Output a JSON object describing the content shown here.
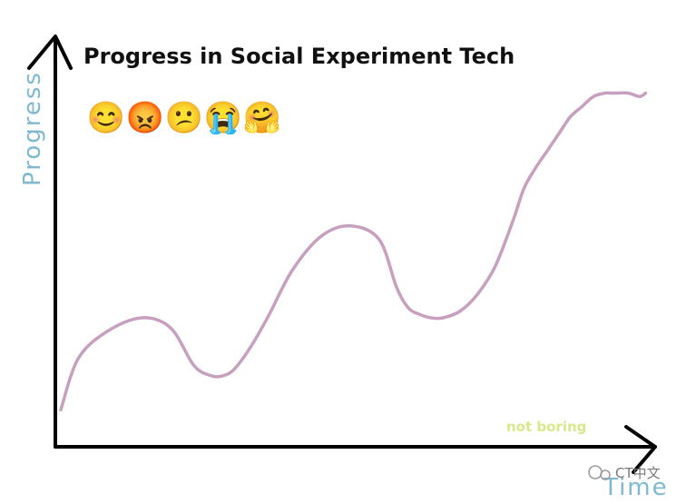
{
  "chart_data": {
    "type": "line",
    "title": "Progress in Social Experiment Tech",
    "xlabel": "Time",
    "ylabel": "Progress",
    "grid": false,
    "xlim": [
      0,
      100
    ],
    "ylim": [
      0,
      100
    ],
    "series": [
      {
        "color": "#c7a0bf",
        "x": [
          0,
          3,
          8,
          14,
          19,
          23,
          26,
          28,
          30,
          33,
          36,
          40,
          45,
          50,
          55,
          58,
          60,
          62,
          64,
          66,
          69,
          72,
          75,
          78,
          80,
          82,
          84,
          86,
          88,
          90,
          92,
          94,
          95,
          96,
          98,
          100,
          101
        ],
        "y": [
          5,
          20,
          28,
          32,
          29,
          18,
          15,
          15,
          17,
          24,
          33,
          46,
          56,
          59,
          55,
          41,
          35,
          33,
          32,
          32,
          34,
          39,
          47,
          60,
          70,
          76,
          81,
          86,
          91,
          94,
          97,
          98,
          98,
          98,
          98,
          97,
          98
        ]
      }
    ],
    "emojis": [
      "😊",
      "😡",
      "😕",
      "😭",
      "🤗"
    ],
    "watermark": "not boring",
    "source_label": "CT中文"
  }
}
